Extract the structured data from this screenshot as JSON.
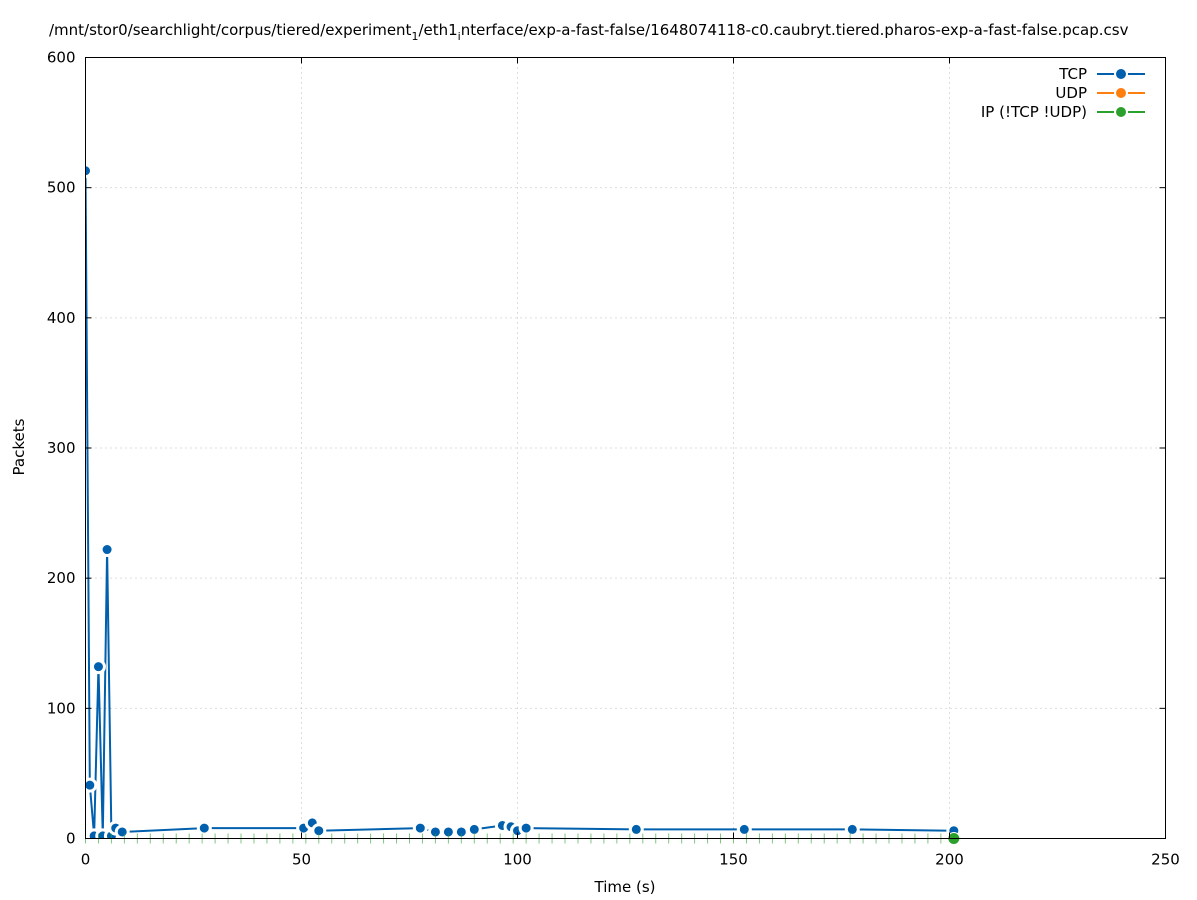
{
  "chart_data": {
    "type": "line",
    "title": "/mnt/stor0/searchlight/corpus/tiered/experiment",
    "title_sub1": "1",
    "title_mid": "/eth1",
    "title_sub2": "i",
    "title_end": "nterface/exp-a-fast-false/1648074118-c0.caubryt.tiered.pharos-exp-a-fast-false.pcap.csv",
    "xlabel": "Time (s)",
    "ylabel": "Packets",
    "xlim": [
      0,
      250
    ],
    "ylim": [
      0,
      600
    ],
    "xticks": [
      "0",
      "50",
      "100",
      "150",
      "200",
      "250"
    ],
    "yticks": [
      "0",
      "100",
      "200",
      "300",
      "400",
      "500",
      "600"
    ],
    "grid": true,
    "legend_position": "top-right",
    "series": [
      {
        "name": "TCP",
        "color": "#0060ad",
        "x": [
          0,
          1,
          2,
          3,
          4,
          5,
          6,
          7,
          8.5,
          27.5,
          50.5,
          52.5,
          54,
          77.5,
          81,
          84,
          87,
          90,
          96.5,
          98.5,
          100,
          102,
          127.5,
          152.5,
          177.5,
          201
        ],
        "y": [
          513,
          41,
          2,
          132,
          2,
          222,
          2,
          8,
          5,
          8,
          8,
          12,
          6,
          8,
          5,
          5,
          5,
          7,
          10,
          9,
          6,
          8,
          7,
          7,
          7,
          6
        ]
      },
      {
        "name": "UDP",
        "color": "#ff7f0e",
        "x": [],
        "y": []
      },
      {
        "name": "IP (!TCP  !UDP)",
        "color": "#2ca02c",
        "x": [
          0,
          3,
          6,
          9,
          12,
          15,
          18,
          21,
          24,
          27,
          30,
          33,
          36,
          39,
          42,
          45,
          48,
          51,
          54,
          57,
          60,
          63,
          66,
          69,
          72,
          75,
          78,
          81,
          84,
          87,
          90,
          93,
          96,
          99,
          102,
          105,
          108,
          111,
          114,
          117,
          120,
          123,
          126,
          129,
          132,
          135,
          138,
          141,
          144,
          147,
          150,
          153,
          156,
          159,
          162,
          165,
          168,
          171,
          174,
          177,
          180,
          183,
          186,
          189,
          192,
          195,
          198,
          201
        ],
        "y": [
          0,
          0,
          0,
          0,
          0,
          0,
          0,
          0,
          0,
          0,
          0,
          0,
          0,
          0,
          0,
          0,
          0,
          0,
          0,
          0,
          0,
          0,
          0,
          0,
          0,
          0,
          0,
          0,
          0,
          0,
          0,
          0,
          0,
          0,
          0,
          0,
          0,
          0,
          0,
          0,
          0,
          0,
          0,
          0,
          0,
          0,
          0,
          0,
          0,
          0,
          0,
          0,
          0,
          0,
          0,
          0,
          0,
          0,
          0,
          0,
          0,
          0,
          0,
          0,
          0,
          0,
          0,
          0
        ]
      }
    ]
  }
}
